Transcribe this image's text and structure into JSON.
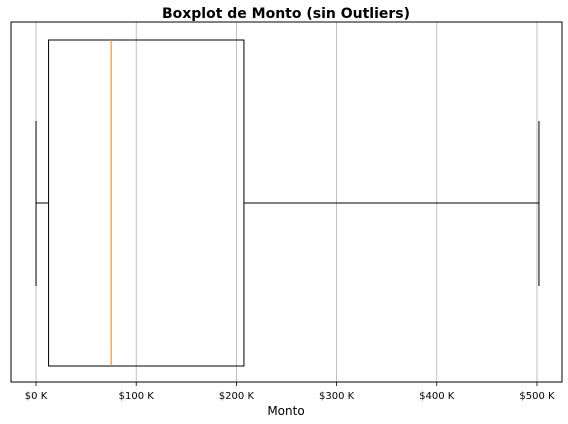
{
  "chart_data": {
    "type": "boxplot",
    "orientation": "horizontal",
    "title": "Boxplot de Monto (sin Outliers)",
    "xlabel": "Monto",
    "ylabel": "",
    "xlim": [
      -25000,
      525000
    ],
    "x_ticks": [
      0,
      100000,
      200000,
      300000,
      400000,
      500000
    ],
    "x_tick_labels": [
      "$0 K",
      "$100 K",
      "$200 K",
      "$300 K",
      "$400 K",
      "$500 K"
    ],
    "grid": "x",
    "box": {
      "whisker_low": 0,
      "q1": 12500,
      "median": 75000,
      "q3": 207500,
      "whisker_high": 502000
    },
    "colors": {
      "box": "#000000",
      "median": "#ff7f0e",
      "grid": "#b0b0b0"
    }
  }
}
